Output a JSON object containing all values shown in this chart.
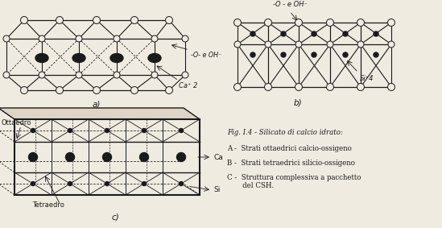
{
  "bg_color": "#f0ebe0",
  "line_color": "#1a1a1a",
  "fig_title": "Fig. I.4 - Silicato di calcio idrato:",
  "legend_a": "A -  Strati ottaedrici calcio-ossigeno",
  "legend_b": "B -  Strati tetraedrici silicio-ossigeno",
  "legend_c": "C -  Struttura complessiva a pacchetto\n       del CSH.",
  "label_a": "a)",
  "label_b": "b)",
  "label_c": "c)",
  "label_ottaedro": "Ottaedro",
  "label_tetraedro": "Tetraedro",
  "label_ca": "Ca",
  "label_si": "Si",
  "label_oh_a": "-O- e OH⁻",
  "label_ca2": "Ca⁺ 2",
  "label_oh_b": "-O - e OH⁻",
  "label_si4": "Si⁺4"
}
